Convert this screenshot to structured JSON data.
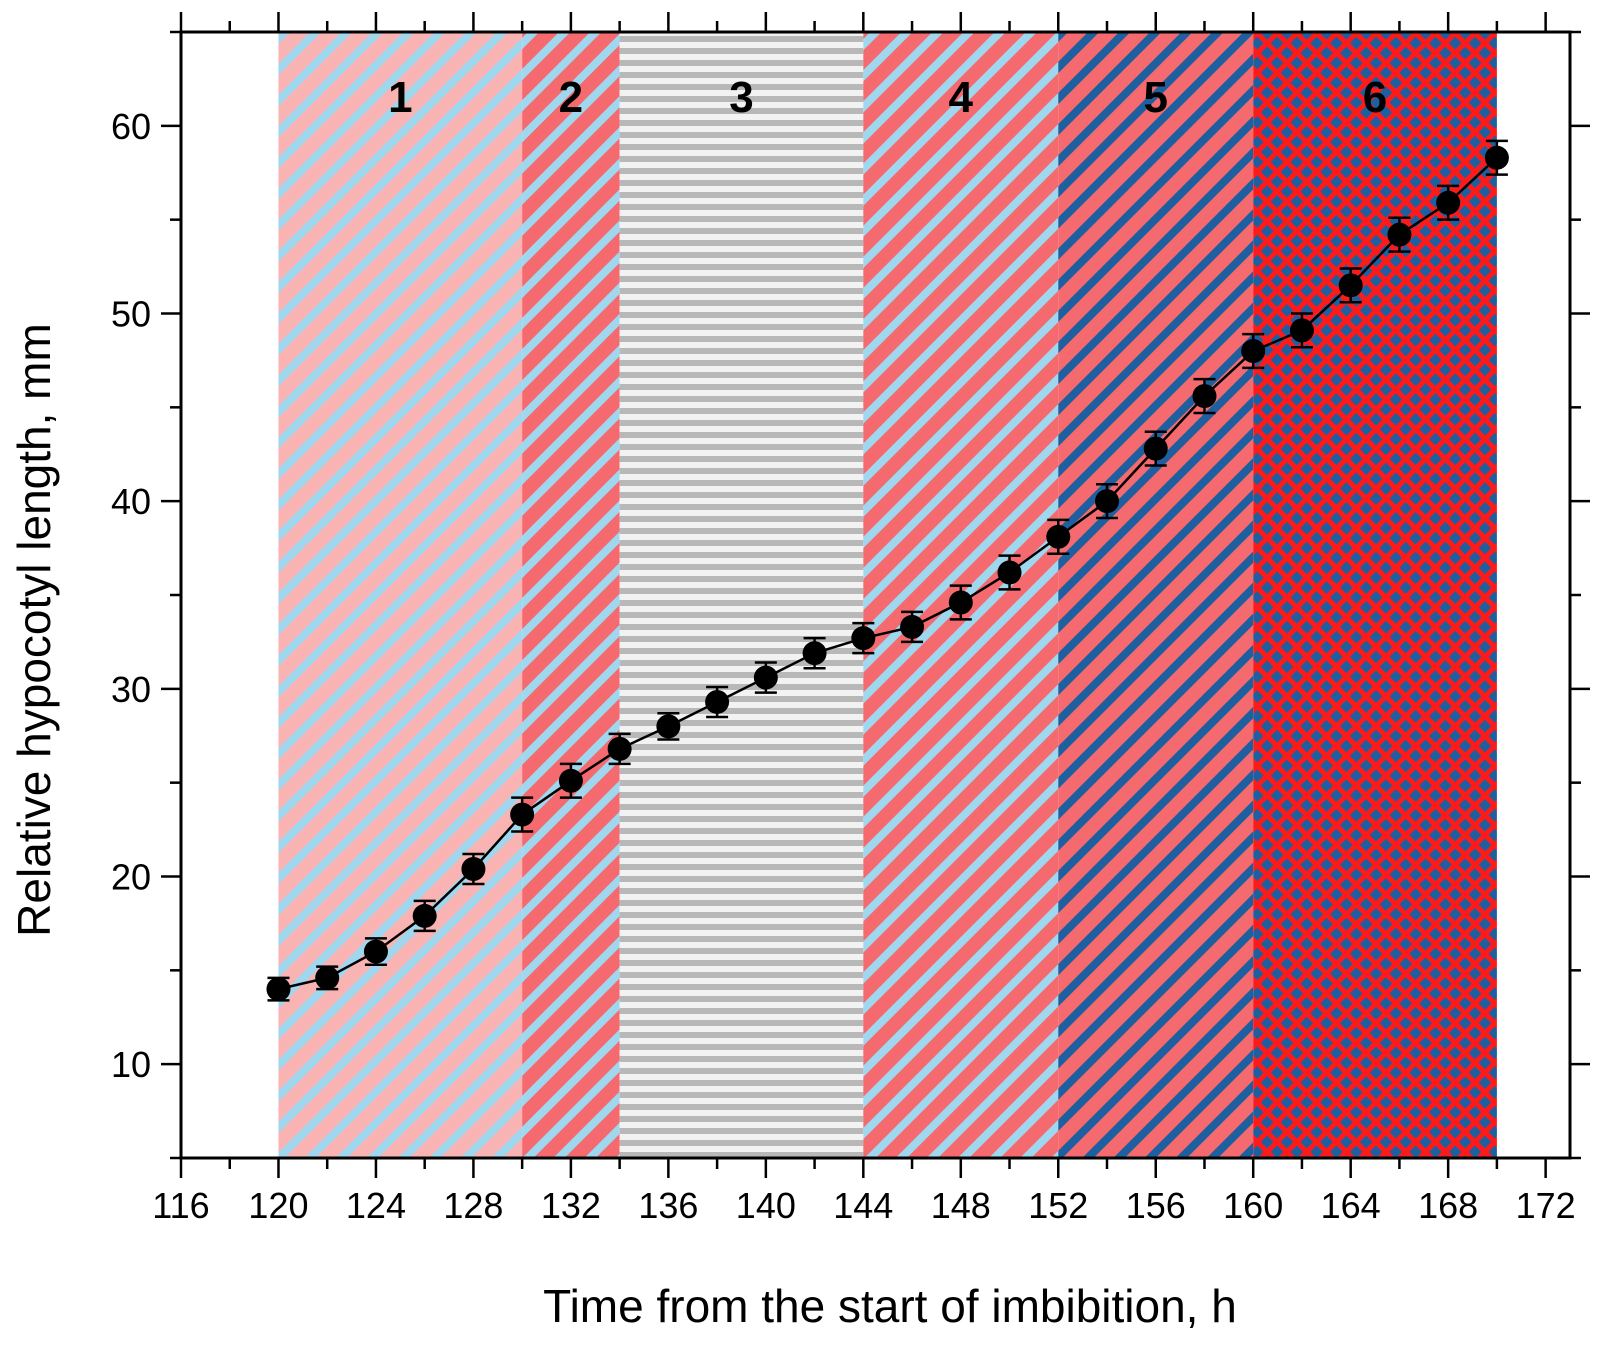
{
  "chart_data": {
    "type": "line",
    "xlabel": "Time from the start of imbibition, h",
    "ylabel": "Relative hypocotyl length, mm",
    "xlim": [
      116,
      173
    ],
    "ylim": [
      5,
      65
    ],
    "x_ticks": [
      116,
      120,
      124,
      128,
      132,
      136,
      140,
      144,
      148,
      152,
      156,
      160,
      164,
      168,
      172
    ],
    "y_ticks": [
      10,
      20,
      30,
      40,
      50,
      60
    ],
    "grid": false,
    "legend": "none",
    "bands": [
      {
        "label": "1",
        "x0": 120,
        "x1": 130,
        "pattern": "diagonal",
        "bg": "#f9b3b3",
        "stripe": "#9ed7ee"
      },
      {
        "label": "2",
        "x0": 130,
        "x1": 134,
        "pattern": "diagonal",
        "bg": "#f56a6e",
        "stripe": "#9ed7ee"
      },
      {
        "label": "3",
        "x0": 134,
        "x1": 144,
        "pattern": "horizontal",
        "bg": "#f2f2f2",
        "stripe": "#b8b8b8"
      },
      {
        "label": "4",
        "x0": 144,
        "x1": 152,
        "pattern": "diagonal",
        "bg": "#f56a6e",
        "stripe": "#9ed7ee"
      },
      {
        "label": "5",
        "x0": 152,
        "x1": 160,
        "pattern": "diagonal",
        "bg": "#f56a6e",
        "stripe": "#1e5fa0"
      },
      {
        "label": "6",
        "x0": 160,
        "x1": 170,
        "pattern": "crosshatch",
        "bg": "#1e5fa0",
        "stripe": "#ff1a1a"
      }
    ],
    "series": [
      {
        "x": [
          120,
          122,
          124,
          126,
          128,
          130,
          132,
          134,
          136,
          138,
          140,
          142,
          144,
          146,
          148,
          150,
          152,
          154,
          156,
          158,
          160,
          162,
          164,
          166,
          168,
          170
        ],
        "values": [
          14.0,
          14.6,
          16.0,
          17.9,
          20.4,
          23.3,
          25.1,
          26.8,
          28.0,
          29.3,
          30.6,
          31.9,
          32.7,
          33.3,
          34.6,
          36.2,
          38.1,
          40.0,
          42.8,
          45.6,
          48.0,
          49.1,
          51.5,
          54.2,
          55.9,
          58.3
        ],
        "errors": [
          0.6,
          0.6,
          0.7,
          0.8,
          0.8,
          0.9,
          0.9,
          0.8,
          0.7,
          0.8,
          0.8,
          0.8,
          0.8,
          0.8,
          0.9,
          0.9,
          0.9,
          0.9,
          0.9,
          0.9,
          0.9,
          0.9,
          0.9,
          0.9,
          0.9,
          0.9
        ],
        "color": "#000000"
      }
    ]
  }
}
